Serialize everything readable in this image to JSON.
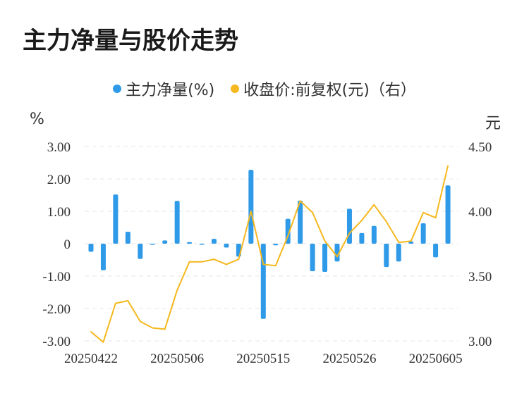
{
  "title": "主力净量与股价走势",
  "chart_data": {
    "type": "bar+line",
    "legend": [
      {
        "label": "主力净量(%)",
        "color": "#2f9ae8"
      },
      {
        "label": "收盘价:前复权(元)（右）",
        "color": "#f5b81e"
      }
    ],
    "left_unit": "%",
    "right_unit": "元",
    "y_left": {
      "min": -3,
      "max": 3,
      "ticks": [
        "3.00",
        "2.00",
        "1.00",
        "0",
        "-1.00",
        "-2.00",
        "-3.00"
      ]
    },
    "y_right": {
      "min": 3.0,
      "max": 4.5,
      "ticks": [
        "4.50",
        "4.00",
        "3.50",
        "3.00"
      ]
    },
    "x_tick_labels": [
      {
        "index": 0,
        "label": "20250422"
      },
      {
        "index": 7,
        "label": "20250506"
      },
      {
        "index": 14,
        "label": "20250515"
      },
      {
        "index": 21,
        "label": "20250526"
      },
      {
        "index": 28,
        "label": "20250605"
      }
    ],
    "series": [
      {
        "name": "主力净量(%)",
        "type": "bar",
        "values": [
          -0.25,
          -0.82,
          1.52,
          0.37,
          -0.47,
          -0.02,
          0.1,
          1.32,
          0.05,
          -0.03,
          0.15,
          -0.12,
          -0.4,
          2.28,
          -2.32,
          -0.05,
          0.77,
          1.33,
          -0.85,
          -0.87,
          -0.55,
          1.08,
          0.33,
          0.55,
          -0.72,
          -0.55,
          0.07,
          0.63,
          -0.42,
          1.8
        ]
      },
      {
        "name": "收盘价:前复权(元)",
        "type": "line",
        "values": [
          3.07,
          2.99,
          3.29,
          3.31,
          3.15,
          3.1,
          3.09,
          3.39,
          3.61,
          3.61,
          3.63,
          3.59,
          3.63,
          4.0,
          3.59,
          3.58,
          3.81,
          4.08,
          3.99,
          3.77,
          3.65,
          3.83,
          3.93,
          4.05,
          3.92,
          3.76,
          3.77,
          3.99,
          3.95,
          4.35
        ]
      }
    ]
  }
}
